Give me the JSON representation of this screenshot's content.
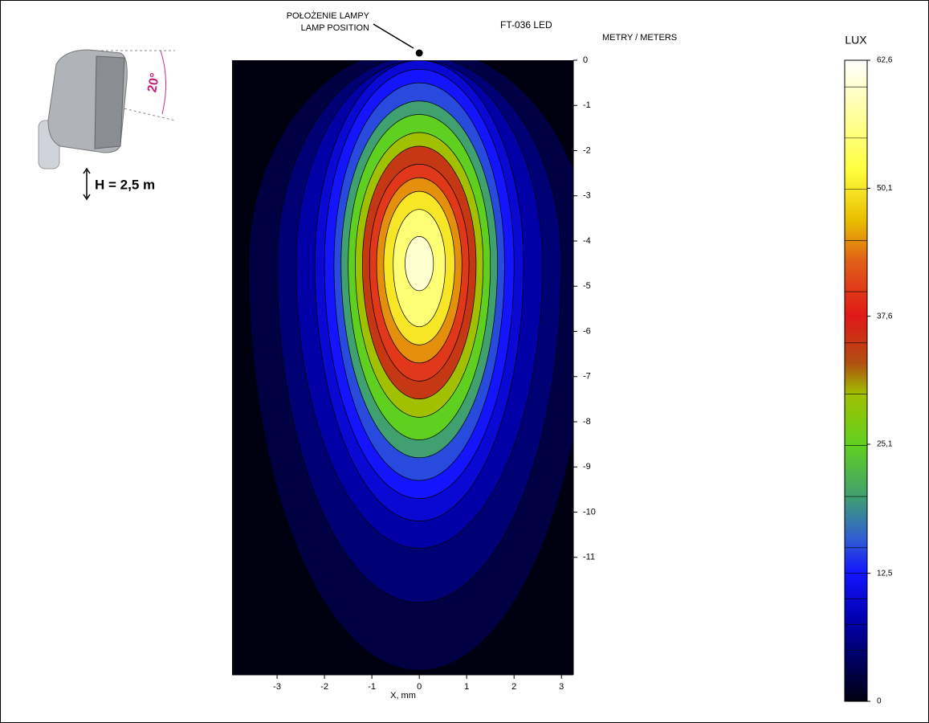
{
  "chart_data": {
    "type": "contour",
    "title": "FT-036 LED",
    "unit_label": "METRY / METERS",
    "x_label": "X, mm",
    "lamp_label": [
      "POŁOŻENIE LAMPY",
      "LAMP POSITION"
    ],
    "lamp_position": [
      0,
      0
    ],
    "height_label": "H = 2,5 m",
    "angle_label": "20°",
    "colorbar_title": "LUX",
    "xlim": [
      -3.95,
      3.25
    ],
    "ylim": [
      -13.6,
      0
    ],
    "xticks": [
      -3,
      -2,
      -1,
      0,
      1,
      2,
      3
    ],
    "yticks": [
      0,
      -1,
      -2,
      -3,
      -4,
      -5,
      -6,
      -7,
      -8,
      -9,
      -10,
      -11
    ],
    "clim": [
      0,
      62.6
    ],
    "cticks": [
      0,
      {
        "value": 12.5,
        "label": "12,5"
      },
      {
        "value": 25.1,
        "label": "25,1"
      },
      {
        "value": 37.6,
        "label": "37,6"
      },
      {
        "value": 50.1,
        "label": "50,1"
      },
      {
        "value": 62.6,
        "label": "62,6"
      }
    ],
    "colorscale": [
      [
        0,
        "#000010"
      ],
      [
        8,
        "#0000b0"
      ],
      [
        12.5,
        "#1414ff"
      ],
      [
        16,
        "#3060d0"
      ],
      [
        20,
        "#40a070"
      ],
      [
        25,
        "#60d020"
      ],
      [
        30,
        "#a0c000"
      ],
      [
        33,
        "#b05010"
      ],
      [
        37.6,
        "#e01818"
      ],
      [
        43,
        "#e06018"
      ],
      [
        47,
        "#e8c000"
      ],
      [
        52,
        "#ffff40"
      ],
      [
        62.6,
        "#ffffff"
      ]
    ],
    "center": [
      0,
      -4.5
    ],
    "contours": [
      {
        "level": 2.5,
        "half_width": 3.6,
        "top": 0.3,
        "bottom": -13.5
      },
      {
        "level": 5,
        "half_width": 3.0,
        "top": 0.1,
        "bottom": -12
      },
      {
        "level": 7.5,
        "half_width": 2.6,
        "top": 0,
        "bottom": -10.8
      },
      {
        "level": 10,
        "half_width": 2.2,
        "top": 0,
        "bottom": -10.2
      },
      {
        "level": 12.5,
        "half_width": 2.0,
        "top": -0.2,
        "bottom": -9.7
      },
      {
        "level": 15,
        "half_width": 1.8,
        "top": -0.5,
        "bottom": -9.3
      },
      {
        "level": 20,
        "half_width": 1.65,
        "top": -0.9,
        "bottom": -8.8
      },
      {
        "level": 25,
        "half_width": 1.5,
        "top": -1.2,
        "bottom": -8.4
      },
      {
        "level": 30,
        "half_width": 1.35,
        "top": -1.6,
        "bottom": -7.9
      },
      {
        "level": 35,
        "half_width": 1.2,
        "top": -1.9,
        "bottom": -7.5
      },
      {
        "level": 40,
        "half_width": 1.05,
        "top": -2.3,
        "bottom": -7.1
      },
      {
        "level": 45,
        "half_width": 0.9,
        "top": -2.6,
        "bottom": -6.7
      },
      {
        "level": 50,
        "half_width": 0.75,
        "top": -2.9,
        "bottom": -6.3
      },
      {
        "level": 55,
        "half_width": 0.55,
        "top": -3.3,
        "bottom": -5.9
      },
      {
        "level": 60,
        "half_width": 0.3,
        "top": -3.9,
        "bottom": -5.1
      }
    ]
  }
}
